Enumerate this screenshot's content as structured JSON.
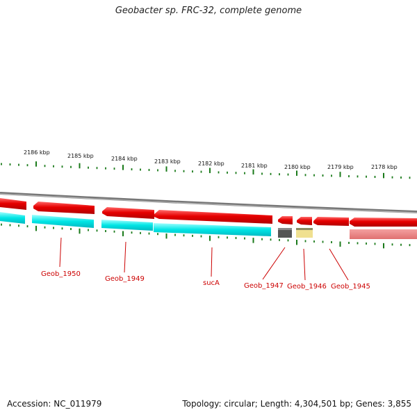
{
  "title": "Geobacter sp. FRC-32, complete genome",
  "footer": {
    "accession": "Accession: NC_011979",
    "summary": "Topology: circular; Length: 4,304,501 bp; Genes: 3,855"
  },
  "ruler": {
    "labels": [
      "2186 kbp",
      "2185 kbp",
      "2184 kbp",
      "2183 kbp",
      "2182 kbp",
      "2181 kbp",
      "2180 kbp",
      "2179 kbp",
      "2178 kbp"
    ],
    "tick_color": "#1a7a1a"
  },
  "genes": {
    "labels": [
      "Geob_1950",
      "Geob_1949",
      "sucA",
      "Geob_1947",
      "Geob_1946",
      "Geob_1945"
    ],
    "label_color": "#cc0000"
  },
  "colors": {
    "backbone": "#8a8a8a",
    "cds": "#e60000",
    "rna": "#00e5e5",
    "pseudo_dark": "#555555",
    "pseudo_light": "#f0e090",
    "faded": "#f08080"
  }
}
